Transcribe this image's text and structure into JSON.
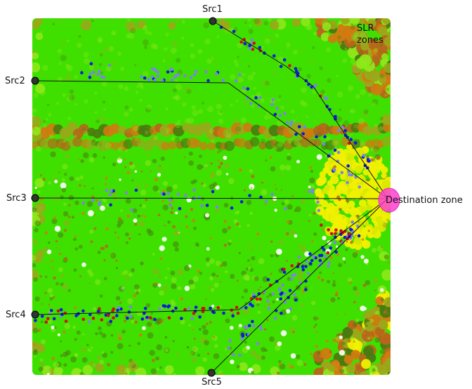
{
  "labels": {
    "src1": "Src1",
    "src2": "Src2",
    "src3": "Src3",
    "src4": "Src4",
    "src5": "Src5",
    "destination": "Destination zone",
    "slr_line1": "SLR",
    "slr_line2": "zones"
  },
  "colors": {
    "cell_green": "#3fe000",
    "cell_green_light": "#8ee81a",
    "cell_dark_green": "#4a7a10",
    "cell_olive": "#9aa81a",
    "cell_brown": "#b8651a",
    "cell_orange": "#d07a10",
    "cell_yellow": "#f0f000",
    "agent_blue": "#0a1adf",
    "agent_lavender": "#7a86e0",
    "agent_red": "#d01010",
    "route_line": "#111111",
    "source_marker": "#333333",
    "destination_marker": "#ff3fd2"
  },
  "sources": [
    "src1",
    "src2",
    "src3",
    "src4",
    "src5"
  ],
  "destination": "destination"
}
